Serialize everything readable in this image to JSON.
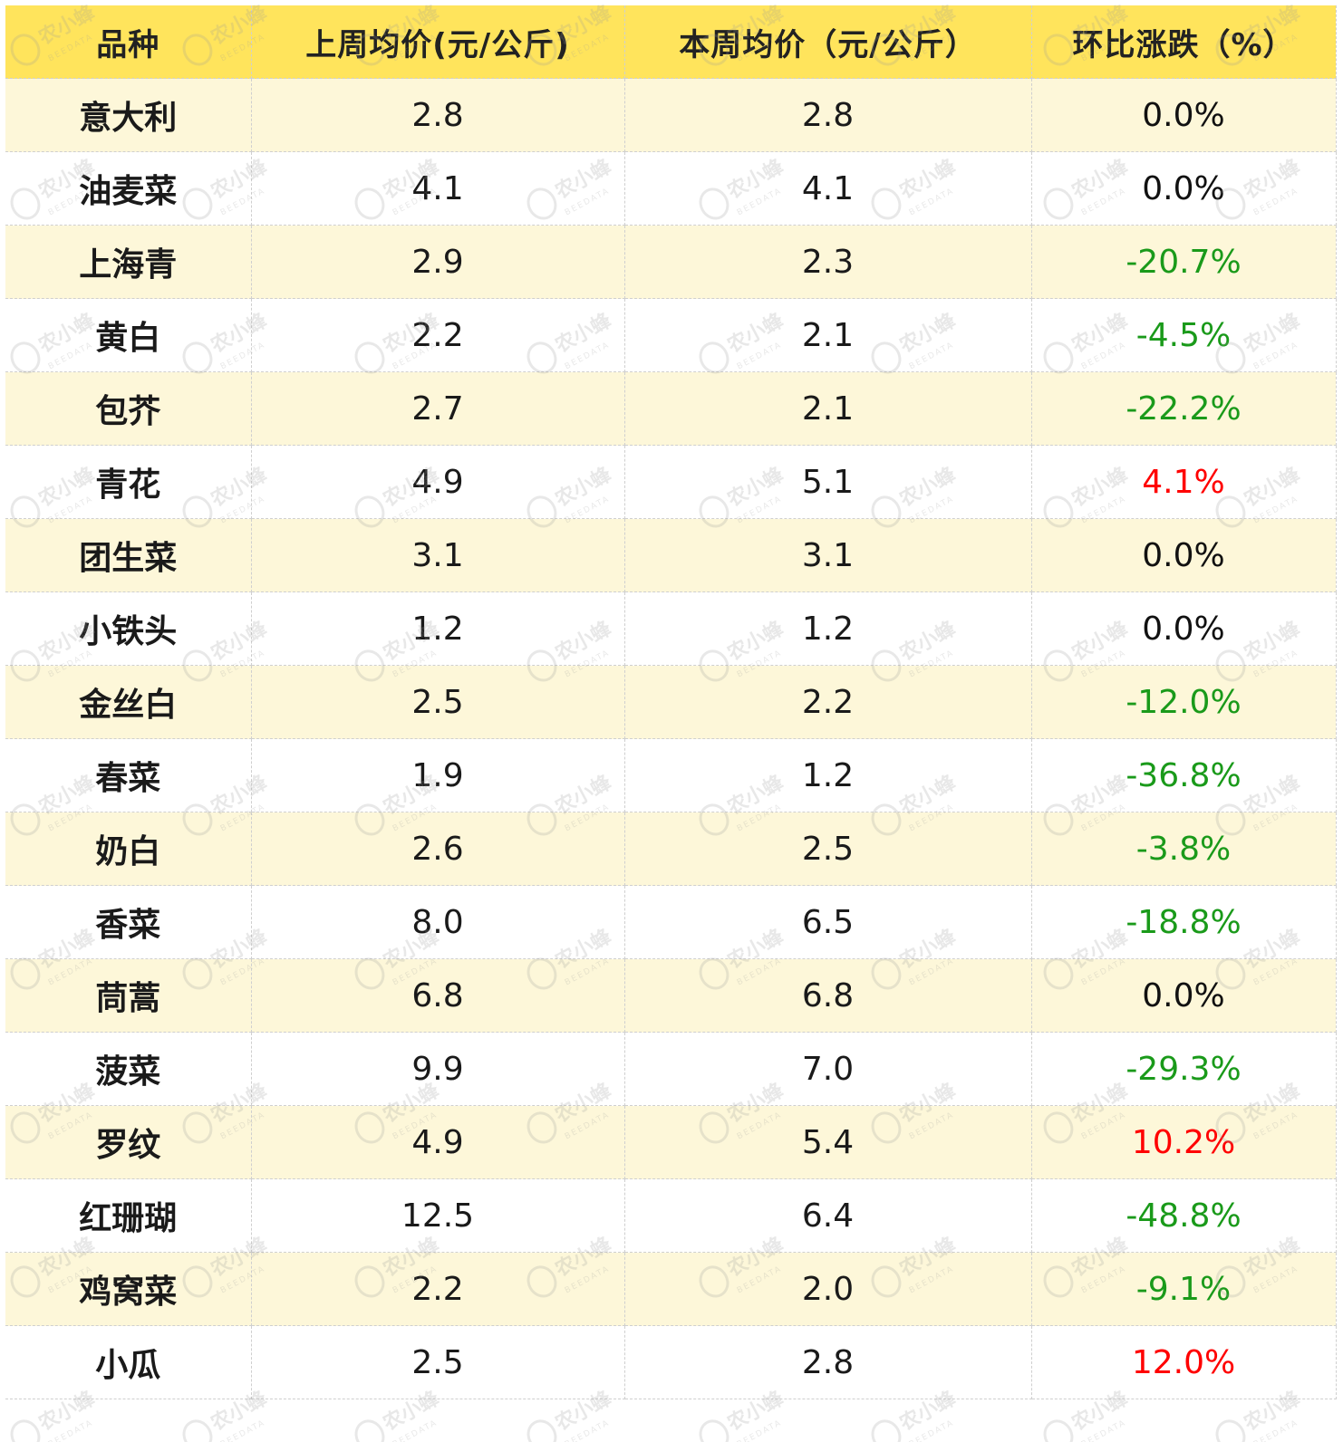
{
  "chart_data": {
    "type": "table",
    "columns": [
      "品种",
      "上周均价(元/公斤)",
      "本周均价（元/公斤）",
      "环比涨跌（%）"
    ],
    "rows": [
      {
        "variety": "意大利",
        "last_week": "2.8",
        "this_week": "2.8",
        "change": "0.0%",
        "trend": "flat"
      },
      {
        "variety": "油麦菜",
        "last_week": "4.1",
        "this_week": "4.1",
        "change": "0.0%",
        "trend": "flat"
      },
      {
        "variety": "上海青",
        "last_week": "2.9",
        "this_week": "2.3",
        "change": "-20.7%",
        "trend": "down"
      },
      {
        "variety": "黄白",
        "last_week": "2.2",
        "this_week": "2.1",
        "change": "-4.5%",
        "trend": "down"
      },
      {
        "variety": "包芥",
        "last_week": "2.7",
        "this_week": "2.1",
        "change": "-22.2%",
        "trend": "down"
      },
      {
        "variety": "青花",
        "last_week": "4.9",
        "this_week": "5.1",
        "change": "4.1%",
        "trend": "up"
      },
      {
        "variety": "团生菜",
        "last_week": "3.1",
        "this_week": "3.1",
        "change": "0.0%",
        "trend": "flat"
      },
      {
        "variety": "小铁头",
        "last_week": "1.2",
        "this_week": "1.2",
        "change": "0.0%",
        "trend": "flat"
      },
      {
        "variety": "金丝白",
        "last_week": "2.5",
        "this_week": "2.2",
        "change": "-12.0%",
        "trend": "down"
      },
      {
        "variety": "春菜",
        "last_week": "1.9",
        "this_week": "1.2",
        "change": "-36.8%",
        "trend": "down"
      },
      {
        "variety": "奶白",
        "last_week": "2.6",
        "this_week": "2.5",
        "change": "-3.8%",
        "trend": "down"
      },
      {
        "variety": "香菜",
        "last_week": "8.0",
        "this_week": "6.5",
        "change": "-18.8%",
        "trend": "down"
      },
      {
        "variety": "茼蒿",
        "last_week": "6.8",
        "this_week": "6.8",
        "change": "0.0%",
        "trend": "flat"
      },
      {
        "variety": "菠菜",
        "last_week": "9.9",
        "this_week": "7.0",
        "change": "-29.3%",
        "trend": "down"
      },
      {
        "variety": "罗纹",
        "last_week": "4.9",
        "this_week": "5.4",
        "change": "10.2%",
        "trend": "up"
      },
      {
        "variety": "红珊瑚",
        "last_week": "12.5",
        "this_week": "6.4",
        "change": "-48.8%",
        "trend": "down"
      },
      {
        "variety": "鸡窝菜",
        "last_week": "2.2",
        "this_week": "2.0",
        "change": "-9.1%",
        "trend": "down"
      },
      {
        "variety": "小瓜",
        "last_week": "2.5",
        "this_week": "2.8",
        "change": "12.0%",
        "trend": "up"
      }
    ]
  },
  "colors": {
    "header_bg": "#ffe45c",
    "odd_row_bg": "#fdf7d9",
    "even_row_bg": "#ffffff",
    "up": "#ff0000",
    "down": "#1a9a1a",
    "flat": "#111111"
  },
  "watermark": {
    "main": "农小蜂",
    "sub": "BEEDATA",
    "icon": "bee-logo-icon"
  }
}
